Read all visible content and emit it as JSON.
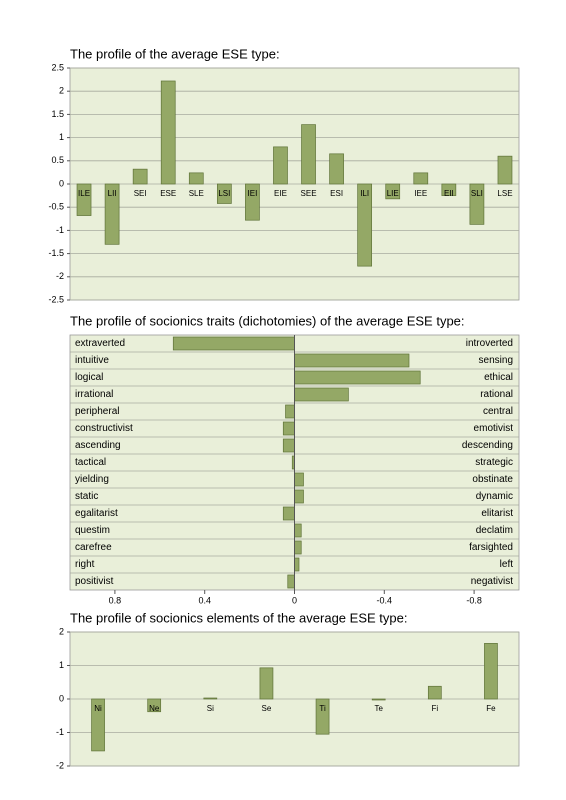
{
  "chart_data": [
    {
      "type": "bar",
      "title": "The profile of the average ESE type:",
      "categories": [
        "ILE",
        "LII",
        "SEI",
        "ESE",
        "SLE",
        "LSI",
        "IEI",
        "EIE",
        "SEE",
        "ESI",
        "ILI",
        "LIE",
        "IEE",
        "EII",
        "SLI",
        "LSE"
      ],
      "values": [
        -0.68,
        -1.3,
        0.32,
        2.22,
        0.24,
        -0.42,
        -0.78,
        0.8,
        1.28,
        0.65,
        -1.77,
        -0.32,
        0.24,
        -0.25,
        -0.87,
        0.6
      ],
      "color": "#94a866",
      "ylim": [
        -2.5,
        2.5
      ],
      "yticks": [
        -2.5,
        -2,
        -1.5,
        -1,
        -0.5,
        0,
        0.5,
        1,
        1.5,
        2,
        2.5
      ],
      "grid": true
    },
    {
      "type": "hbar",
      "title": "The profile of socionics traits (dichotomies) of the average ESE type:",
      "categories": [
        "extraverted",
        "intuitive",
        "logical",
        "irrational",
        "peripheral",
        "constructivist",
        "ascending",
        "tactical",
        "yielding",
        "static",
        "egalitarist",
        "questim",
        "carefree",
        "right",
        "positivist"
      ],
      "right_labels": [
        "introverted",
        "sensing",
        "ethical",
        "rational",
        "central",
        "emotivist",
        "descending",
        "strategic",
        "obstinate",
        "dynamic",
        "elitarist",
        "declatim",
        "farsighted",
        "left",
        "negativist"
      ],
      "values": [
        0.54,
        -0.51,
        -0.56,
        -0.24,
        0.04,
        0.05,
        0.05,
        0.01,
        -0.04,
        -0.04,
        0.05,
        -0.03,
        -0.03,
        -0.02,
        0.03
      ],
      "color": "#94a866",
      "xlim": [
        1,
        -1
      ],
      "xticks": [
        0.8,
        0.4,
        0,
        -0.4,
        -0.8
      ],
      "grid": true
    },
    {
      "type": "bar",
      "title": "The profile of socionics elements of the average ESE type:",
      "categories": [
        "Ni",
        "Ne",
        "Si",
        "Se",
        "Ti",
        "Te",
        "Fi",
        "Fe"
      ],
      "values": [
        -1.55,
        -0.38,
        0.03,
        0.93,
        -1.05,
        -0.03,
        0.38,
        1.66
      ],
      "color": "#94a866",
      "ylim": [
        -2,
        2
      ],
      "yticks": [
        -2,
        -1,
        0,
        1,
        2
      ],
      "grid": true
    }
  ]
}
